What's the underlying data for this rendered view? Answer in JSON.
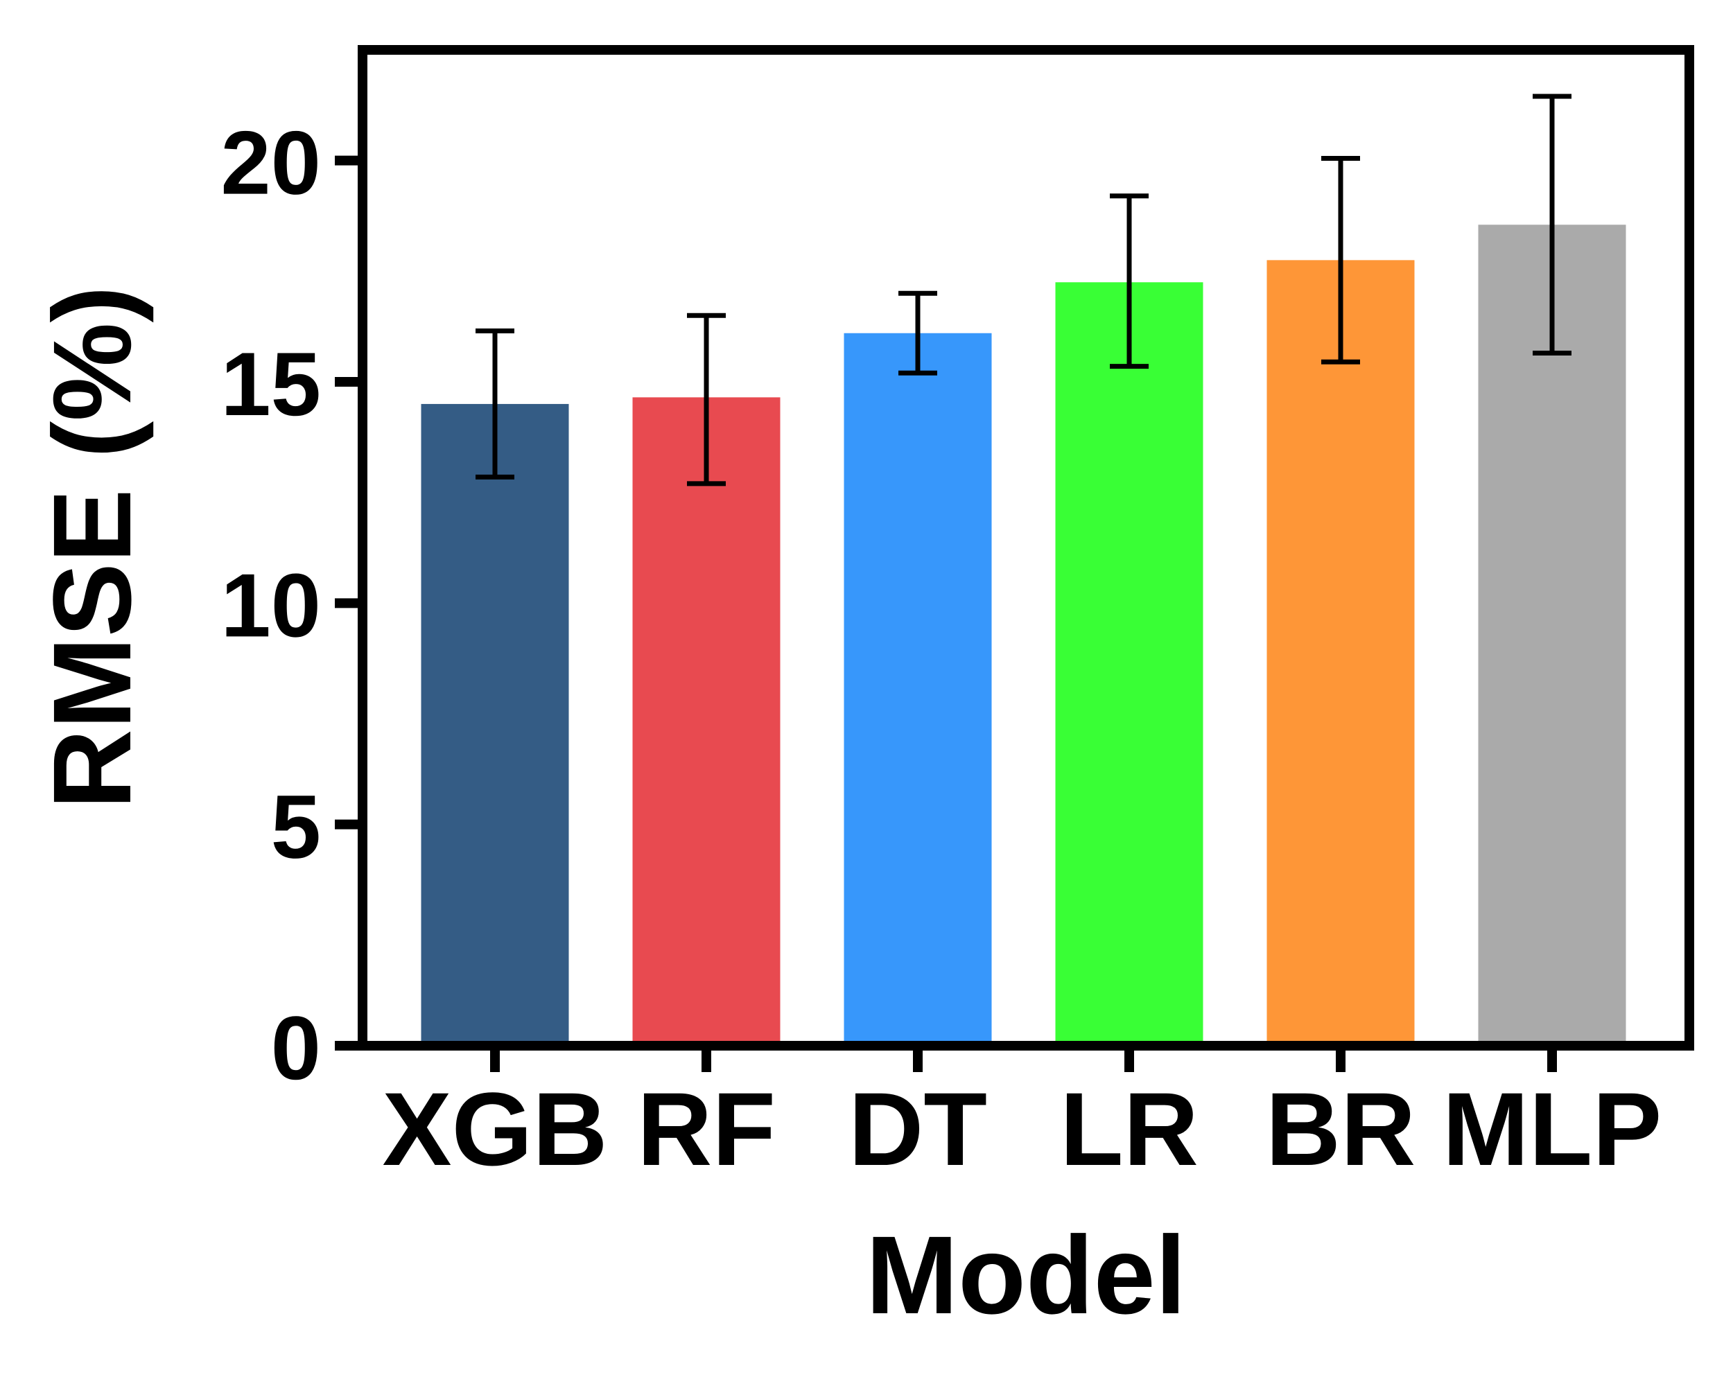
{
  "chart_data": {
    "type": "bar",
    "xlabel": "Model",
    "ylabel": "RMSE (%)",
    "categories": [
      "XGB",
      "RF",
      "DT",
      "LR",
      "BR",
      "MLP"
    ],
    "values": [
      14.5,
      14.65,
      16.1,
      17.25,
      17.75,
      18.55
    ],
    "error_lower": [
      12.85,
      12.7,
      15.2,
      15.35,
      15.45,
      15.65
    ],
    "error_upper": [
      16.15,
      16.5,
      17.0,
      19.2,
      20.05,
      21.45
    ],
    "colors": [
      "#345c85",
      "#e84a50",
      "#3797fb",
      "#39ff35",
      "#fe9637",
      "#aaaaaa"
    ],
    "ylim": [
      0,
      22.5
    ],
    "yticks": [
      "0",
      "5",
      "10",
      "15",
      "20"
    ],
    "ytick_values": [
      0,
      5,
      10,
      15,
      20
    ],
    "grid": false,
    "legend": "none"
  }
}
